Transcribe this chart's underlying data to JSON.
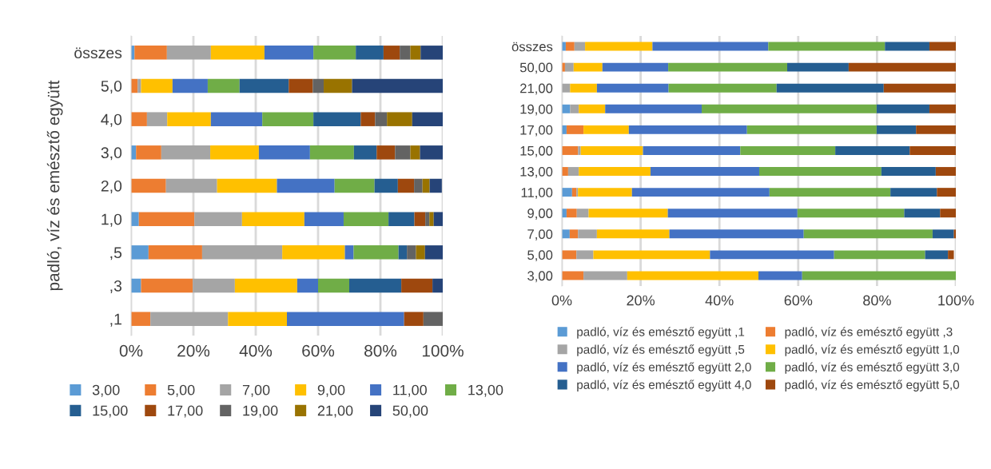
{
  "chart_data": [
    {
      "type": "bar",
      "orientation": "horizontal",
      "stacked": true,
      "ylabel": "padló, víz és emésztő együtt",
      "categories": [
        "összes",
        "5,0",
        "4,0",
        "3,0",
        "2,0",
        "1,0",
        ",5",
        ",3",
        ",1"
      ],
      "xlim": [
        0,
        100
      ],
      "xticks": [
        {
          "value": 0,
          "label": "0%"
        },
        {
          "value": 20,
          "label": "20%"
        },
        {
          "value": 40,
          "label": "40%"
        },
        {
          "value": 60,
          "label": "60%"
        },
        {
          "value": 80,
          "label": "80%"
        },
        {
          "value": 100,
          "label": "100%"
        }
      ],
      "grid": "x",
      "legend": "bottom",
      "series": [
        {
          "name": "3,00",
          "color": "#5b9bd5",
          "values": [
            1.1,
            null,
            null,
            1.6,
            null,
            2.5,
            5.6,
            3.2,
            null
          ]
        },
        {
          "name": "5,00",
          "color": "#ed7d31",
          "values": [
            10.4,
            2.1,
            5.1,
            8.1,
            11.2,
            17.8,
            17.2,
            16.6,
            6.2
          ]
        },
        {
          "name": "7,00",
          "color": "#a5a5a5",
          "values": [
            14.1,
            1.1,
            6.5,
            15.7,
            16.4,
            15.3,
            25.7,
            13.5,
            24.9
          ]
        },
        {
          "name": "9,00",
          "color": "#ffc000",
          "values": [
            17.2,
            10.1,
            14.0,
            15.6,
            19.2,
            20.0,
            20.1,
            20.0,
            18.9
          ]
        },
        {
          "name": "11,00",
          "color": "#4472c4",
          "values": [
            15.7,
            11.3,
            16.5,
            16.4,
            18.5,
            12.6,
            2.8,
            6.7,
            37.6
          ]
        },
        {
          "name": "13,00",
          "color": "#70ad47",
          "values": [
            13.6,
            10.2,
            16.4,
            14.1,
            12.8,
            14.4,
            14.4,
            10.0,
            null
          ]
        },
        {
          "name": "15,00",
          "color": "#255e91",
          "values": [
            8.9,
            15.8,
            15.2,
            7.3,
            7.5,
            8.3,
            2.7,
            16.7,
            null
          ]
        },
        {
          "name": "17,00",
          "color": "#9e480e",
          "values": [
            5.2,
            7.7,
            4.6,
            5.9,
            5.2,
            3.5,
            null,
            10.0,
            6.2
          ]
        },
        {
          "name": "19,00",
          "color": "#636363",
          "values": [
            3.4,
            3.5,
            3.8,
            4.9,
            2.7,
            1.3,
            2.9,
            null,
            6.2
          ]
        },
        {
          "name": "21,00",
          "color": "#997300",
          "values": [
            3.3,
            9.1,
            8.1,
            3.1,
            2.3,
            1.4,
            2.9,
            null,
            null
          ]
        },
        {
          "name": "50,00",
          "color": "#264478",
          "values": [
            7.1,
            29.1,
            9.8,
            7.3,
            3.9,
            2.9,
            5.7,
            3.3,
            null
          ]
        }
      ]
    },
    {
      "type": "bar",
      "orientation": "horizontal",
      "stacked": true,
      "categories": [
        "összes",
        "50,00",
        "21,00",
        "19,00",
        "17,00",
        "15,00",
        "13,00",
        "11,00",
        "9,00",
        "7,00",
        "5,00",
        "3,00"
      ],
      "xlim": [
        0,
        100
      ],
      "xticks": [
        {
          "value": 0,
          "label": "0%"
        },
        {
          "value": 20,
          "label": "20%"
        },
        {
          "value": 40,
          "label": "40%"
        },
        {
          "value": 60,
          "label": "60%"
        },
        {
          "value": 80,
          "label": "80%"
        },
        {
          "value": 100,
          "label": "100%"
        }
      ],
      "grid": "x",
      "legend": "bottom",
      "series": [
        {
          "name": "padló, víz és emésztő együtt ,1",
          "color": "#5b9bd5",
          "values": [
            1.0,
            null,
            null,
            2.1,
            1.2,
            null,
            null,
            2.6,
            1.2,
            2.0,
            null,
            null
          ]
        },
        {
          "name": "padló, víz és emésztő együtt ,3",
          "color": "#ed7d31",
          "values": [
            2.2,
            0.8,
            null,
            null,
            4.3,
            4.1,
            1.6,
            1.1,
            2.6,
            2.1,
            3.7,
            5.5
          ]
        },
        {
          "name": "padló, víz és emésztő együtt ,5",
          "color": "#a5a5a5",
          "values": [
            2.7,
            2.2,
            2.1,
            2.2,
            null,
            0.7,
            2.7,
            0.4,
            3.0,
            4.8,
            4.3,
            11.1
          ]
        },
        {
          "name": "padló, víz és emésztő együtt 1,0",
          "color": "#ffc000",
          "values": [
            17.1,
            7.3,
            6.8,
            6.7,
            11.5,
            15.8,
            18.2,
            13.7,
            20.1,
            18.4,
            29.6,
            33.3
          ]
        },
        {
          "name": "padló, víz és emésztő együtt 2,0",
          "color": "#4472c4",
          "values": [
            29.4,
            16.7,
            18.2,
            24.5,
            30.0,
            24.7,
            27.6,
            34.9,
            32.9,
            34.1,
            31.5,
            11.1
          ]
        },
        {
          "name": "padló, víz és emésztő együtt 3,0",
          "color": "#70ad47",
          "values": [
            29.6,
            30.2,
            27.4,
            44.4,
            32.9,
            24.1,
            31.0,
            30.7,
            27.1,
            32.7,
            23.1,
            39.0
          ]
        },
        {
          "name": "padló, víz és emésztő együtt 4,0",
          "color": "#255e91",
          "values": [
            11.3,
            15.6,
            27.2,
            13.4,
            10.0,
            18.9,
            13.8,
            11.8,
            9.1,
            5.4,
            5.8,
            null
          ]
        },
        {
          "name": "padló, víz és emésztő együtt 5,0",
          "color": "#9e480e",
          "values": [
            6.7,
            27.2,
            18.3,
            6.7,
            10.1,
            11.7,
            5.1,
            4.8,
            4.0,
            0.5,
            1.5,
            null
          ]
        }
      ]
    }
  ]
}
